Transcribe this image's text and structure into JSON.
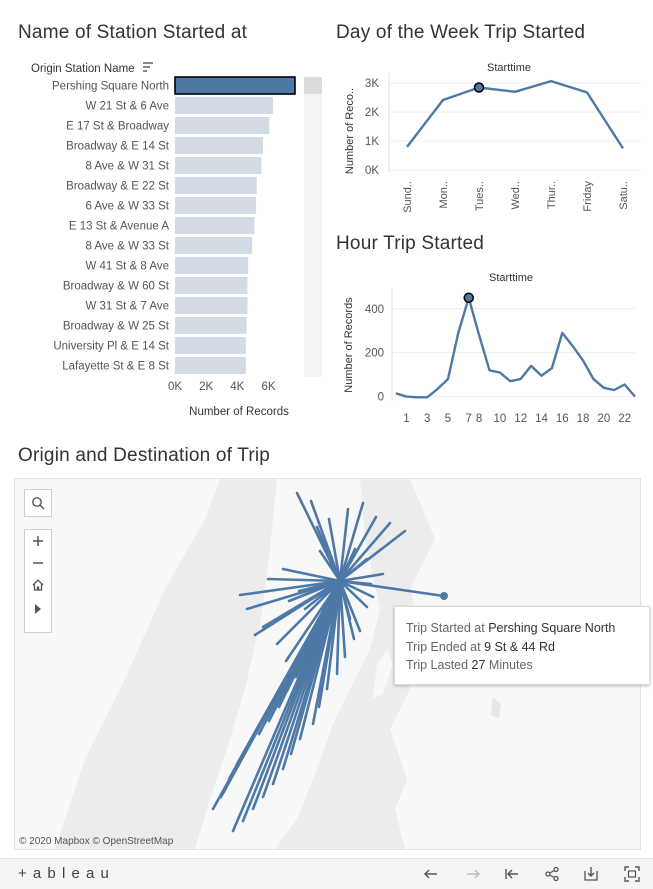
{
  "titles": {
    "station": "Name of Station Started at",
    "day": "Day of the Week Trip Started",
    "hour": "Hour Trip Started",
    "map": "Origin and Destination of Trip"
  },
  "chart_data": [
    {
      "type": "bar",
      "orientation": "horizontal",
      "header": "Origin Station Name",
      "categories": [
        "Pershing Square North",
        "W 21 St & 6 Ave",
        "E 17 St & Broadway",
        "Broadway & E 14 St",
        "8 Ave & W 31 St",
        "Broadway & E 22 St",
        "6 Ave & W 33 St",
        "E 13 St & Avenue A",
        "8 Ave & W 33 St",
        "W 41 St & 8 Ave",
        "Broadway & W 60 St",
        "W 31 St & 7 Ave",
        "Broadway & W 25 St",
        "University Pl & E 14 St",
        "Lafayette St & E 8 St"
      ],
      "values": [
        7700,
        6300,
        6050,
        5650,
        5550,
        5250,
        5200,
        5100,
        4950,
        4700,
        4650,
        4650,
        4600,
        4550,
        4550
      ],
      "highlighted": 0,
      "xlabel": "Number of Records",
      "xticks": [
        "0K",
        "2K",
        "4K",
        "6K"
      ],
      "xtick_values": [
        0,
        2000,
        4000,
        6000
      ],
      "xlim": [
        0,
        8600
      ],
      "colors": {
        "highlight": "#4e79a7",
        "base": "#d3dce6"
      }
    },
    {
      "type": "line",
      "subtitle": "Starttime",
      "categories": [
        "Sund..",
        "Mon..",
        "Tues..",
        "Wed..",
        "Thur..",
        "Friday",
        "Satu.."
      ],
      "values": [
        800,
        2420,
        2850,
        2700,
        3070,
        2680,
        750
      ],
      "highlighted": 2,
      "ylabel": "Number of Reco..",
      "yticks": [
        "0K",
        "1K",
        "2K",
        "3K"
      ],
      "ytick_values": [
        0,
        1000,
        2000,
        3000
      ],
      "ylim": [
        -100,
        3350
      ],
      "color": "#4e79a7"
    },
    {
      "type": "line",
      "subtitle": "Starttime",
      "x": [
        0,
        1,
        2,
        3,
        4,
        5,
        6,
        7,
        8,
        9,
        10,
        11,
        12,
        13,
        14,
        15,
        16,
        17,
        18,
        19,
        20,
        21,
        22,
        23
      ],
      "values": [
        15,
        0,
        -3,
        -3,
        35,
        80,
        290,
        450,
        280,
        120,
        110,
        70,
        80,
        140,
        95,
        130,
        290,
        230,
        165,
        80,
        40,
        30,
        55,
        0
      ],
      "highlighted": 7,
      "xticks": [
        "1",
        "3",
        "5",
        "7",
        "8",
        "10",
        "12",
        "14",
        "16",
        "18",
        "20",
        "22"
      ],
      "xtick_values": [
        1,
        3,
        5,
        7,
        8,
        10,
        12,
        14,
        16,
        18,
        20,
        22
      ],
      "ylabel": "Number of Records",
      "yticks": [
        "0",
        "200",
        "400"
      ],
      "ytick_values": [
        0,
        200,
        400
      ],
      "xlim": [
        0,
        23
      ],
      "ylim": [
        -20,
        490
      ],
      "color": "#4e79a7"
    }
  ],
  "map": {
    "credit": "© 2020 Mapbox © OpenStreetMap",
    "tooltip": {
      "started_prefix": "Trip Started at ",
      "started_value": "Pershing Square North",
      "ended_prefix": "Trip Ended at ",
      "ended_value": "9 St & 44 Rd",
      "lasted_prefix": "Trip Lasted ",
      "lasted_value": "27",
      "lasted_suffix": " Minutes"
    },
    "line_color": "#4e79a7",
    "controls": [
      "search-icon",
      "zoom-in-icon",
      "zoom-out-icon",
      "home-icon",
      "play-icon"
    ]
  },
  "toolbar": {
    "logo": "+ a b l e a u",
    "icons": [
      "undo-icon",
      "redo-icon",
      "revert-icon",
      "share-icon",
      "download-icon",
      "fullscreen-icon"
    ]
  }
}
